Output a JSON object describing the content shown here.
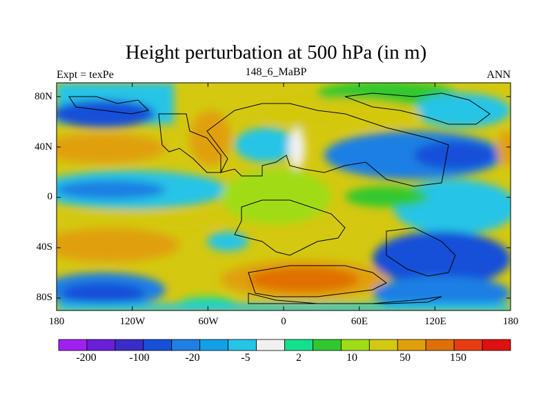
{
  "title": "Height perturbation at 500 hPa (in m)",
  "left_label": "Expt = texPe",
  "center_label": "148_6_MaBP",
  "right_label": "ANN",
  "lat_ticks": [
    "80N",
    "40N",
    "0",
    "40S",
    "80S"
  ],
  "lon_ticks": [
    "180",
    "120W",
    "60W",
    "0",
    "60E",
    "120E",
    "180"
  ],
  "colorbar": {
    "colors": [
      "#a020f0",
      "#6a1fd8",
      "#3a2cc8",
      "#1650d8",
      "#1e7fe4",
      "#12a0e6",
      "#26c4e6",
      "#f0f0f0",
      "#14e08c",
      "#30c82e",
      "#a0dc14",
      "#d4c810",
      "#e0a008",
      "#e07006",
      "#e83c10",
      "#e01010"
    ],
    "labels": [
      "-200",
      "-100",
      "-20",
      "-5",
      "2",
      "10",
      "50",
      "150"
    ]
  }
}
